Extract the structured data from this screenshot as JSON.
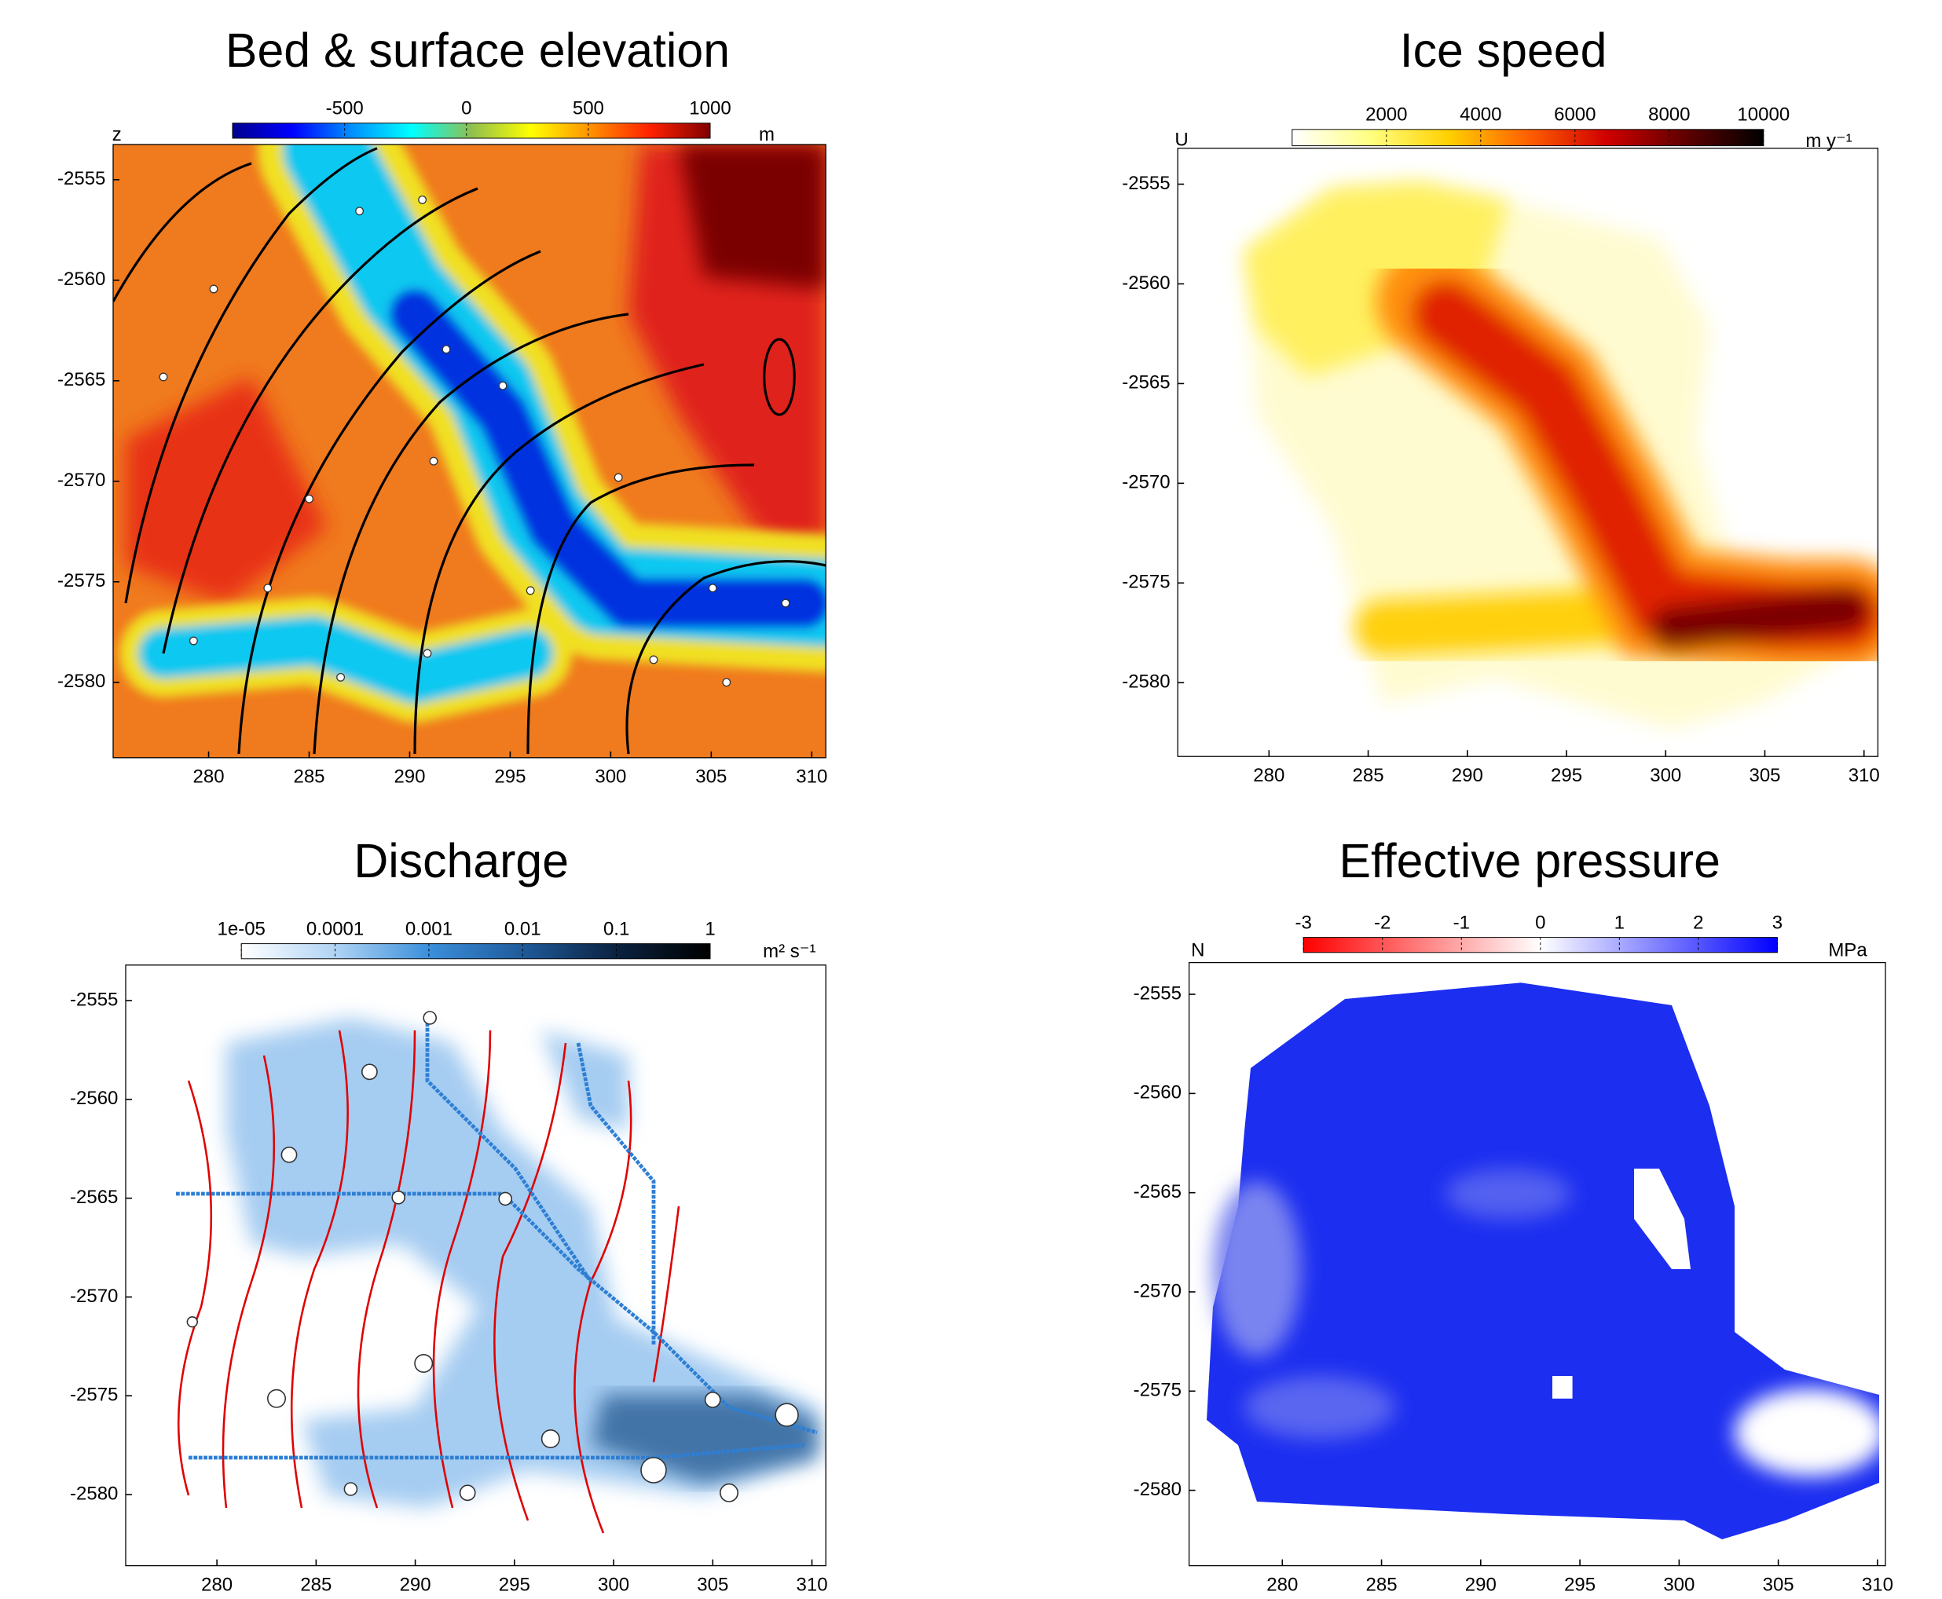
{
  "chart_data": [
    {
      "type": "heatmap",
      "title": "Bed & surface elevation",
      "xlim": [
        275.25,
        310.7
      ],
      "ylim": [
        -2583.75,
        -2553.25
      ],
      "xticks": [
        280,
        285,
        290,
        295,
        300,
        305,
        310
      ],
      "yticks": [
        -2580,
        -2575,
        -2570,
        -2565,
        -2560,
        -2555
      ],
      "colorbar": {
        "label": "z",
        "unit": "m",
        "lim": [
          -960,
          1000
        ],
        "ticks": [
          -500,
          0,
          500,
          1000
        ],
        "log": false,
        "colors": [
          "#00008f",
          "#0000ff",
          "#0090ff",
          "#00ffff",
          "#8fbf4f",
          "#ffff00",
          "#ff9000",
          "#ff2000",
          "#800000"
        ]
      }
    },
    {
      "type": "heatmap",
      "title": "Ice speed",
      "xlim": [
        275.4,
        310.7
      ],
      "ylim": [
        -2583.7,
        -2553.2
      ],
      "xticks": [
        280,
        285,
        290,
        295,
        300,
        305,
        310
      ],
      "yticks": [
        -2580,
        -2575,
        -2570,
        -2565,
        -2560,
        -2555
      ],
      "colorbar": {
        "label": "U",
        "unit": "m y⁻¹",
        "lim": [
          0,
          10000
        ],
        "ticks": [
          2000,
          4000,
          6000,
          8000,
          10000
        ],
        "log": false,
        "colors": [
          "#ffffff",
          "#ffff80",
          "#ffd000",
          "#ff6000",
          "#d00000",
          "#600000",
          "#000000"
        ]
      }
    },
    {
      "type": "heatmap",
      "title": "Discharge",
      "xlim": [
        275.4,
        310.7
      ],
      "ylim": [
        -2583.6,
        -2553.2
      ],
      "xticks": [
        280,
        285,
        290,
        295,
        300,
        305,
        310
      ],
      "yticks": [
        -2580,
        -2575,
        -2570,
        -2565,
        -2560,
        -2555
      ],
      "colorbar": {
        "unit": "m² s⁻¹",
        "lim": [
          1e-05,
          1
        ],
        "log": true,
        "ticks": [
          {
            "value": 1e-05,
            "label": "1e-05"
          },
          0.0001,
          0.001,
          0.01,
          0.1,
          1
        ],
        "colors": [
          "#ffffff",
          "#b0d4f4",
          "#3b8fdc",
          "#1f5a9a",
          "#0a2240",
          "#000000"
        ]
      }
    },
    {
      "type": "heatmap",
      "title": "Effective pressure",
      "xlim": [
        275.3,
        310.4
      ],
      "ylim": [
        -2583.8,
        -2553.4
      ],
      "xticks": [
        280,
        285,
        290,
        295,
        300,
        305,
        310
      ],
      "yticks": [
        -2580,
        -2575,
        -2570,
        -2565,
        -2560,
        -2555
      ],
      "colorbar": {
        "label": "N",
        "unit": "MPa",
        "lim": [
          -3,
          3
        ],
        "ticks": [
          -3,
          -2,
          -1,
          0,
          1,
          2,
          3
        ],
        "log": false,
        "colors": [
          "#ff0000",
          "#ffffff",
          "#0000ff"
        ]
      }
    }
  ]
}
